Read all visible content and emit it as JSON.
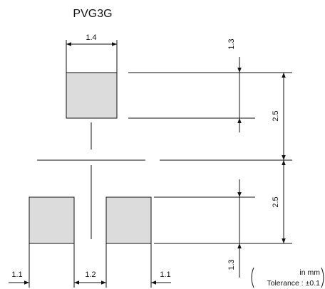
{
  "title": "PVG3G",
  "dimensions": {
    "top_pad_width": "1.4",
    "top_gap": "1.3",
    "upper_height": "2.5",
    "lower_height": "2.5",
    "bottom_gap": "1.3",
    "left_margin": "1.1",
    "pad_spacing": "1.2",
    "right_margin": "1.1"
  },
  "note": {
    "units": "in mm",
    "tolerance": "Tolerance : ±0.1"
  },
  "colors": {
    "pad_fill": "#dcdcdc",
    "line": "#111111"
  }
}
